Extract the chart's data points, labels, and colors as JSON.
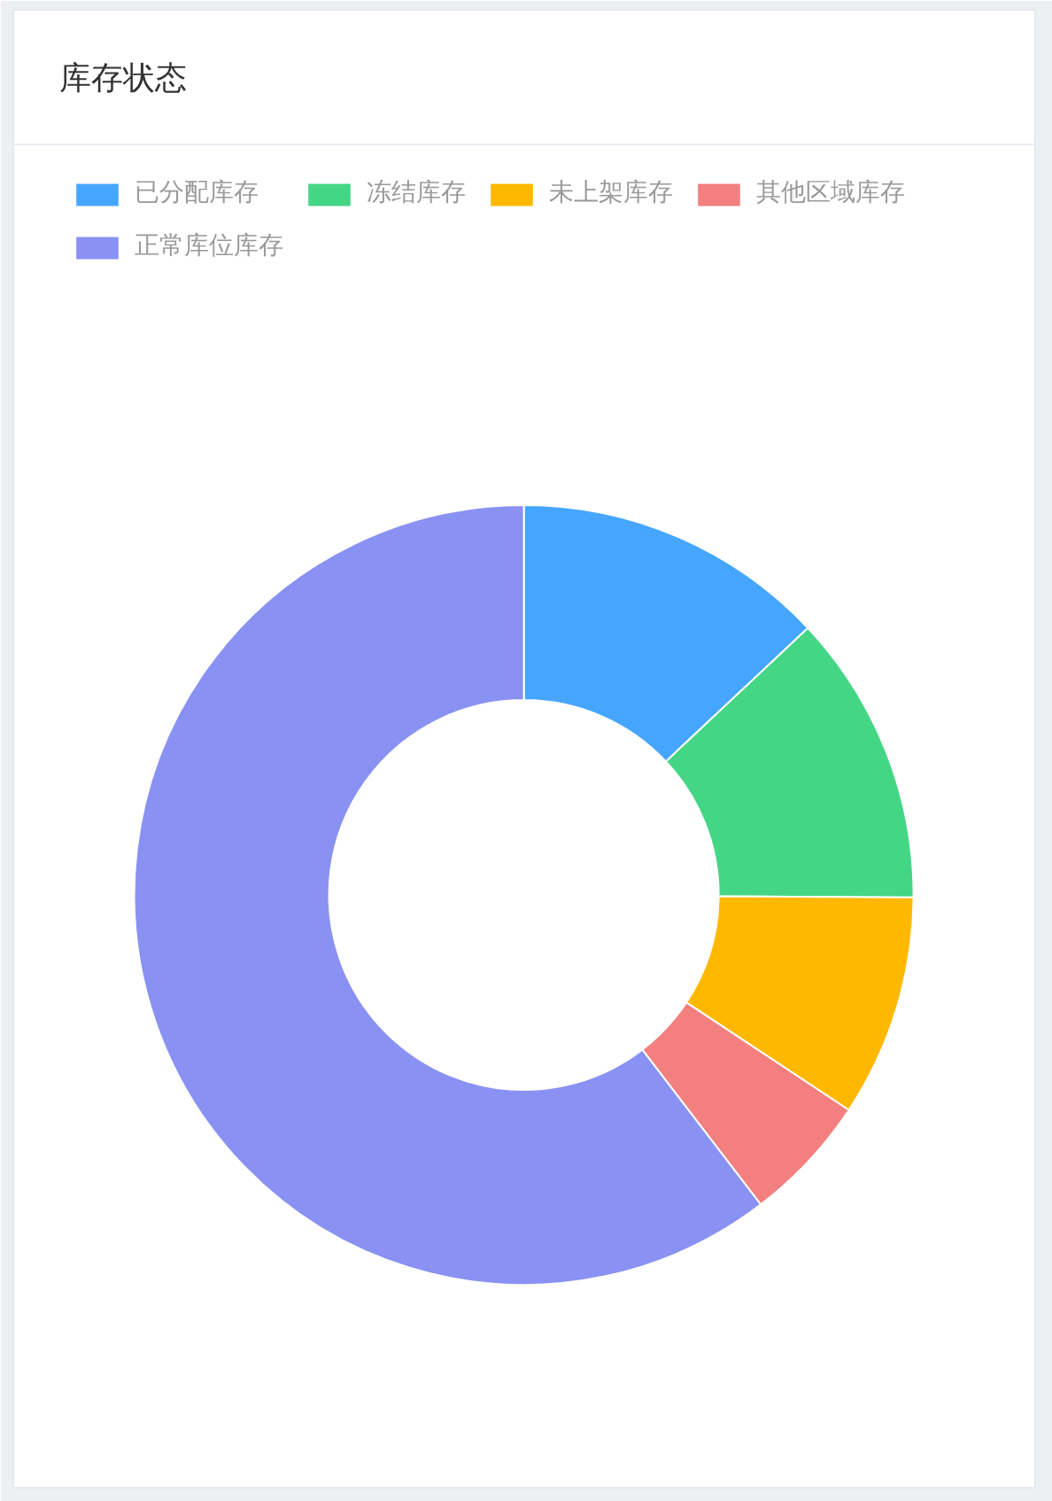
{
  "chart_data": {
    "type": "donut",
    "title": "库存状态",
    "categories": [
      "已分配库存",
      "冻结库存",
      "未上架库存",
      "其他区域库存",
      "正常库位库存"
    ],
    "values": [
      13.0,
      12.1,
      9.2,
      5.3,
      60.4
    ],
    "colors": [
      "#46a6ff",
      "#45d685",
      "#ffb800",
      "#f47f7f",
      "#8992f2"
    ],
    "legend": "top left"
  }
}
